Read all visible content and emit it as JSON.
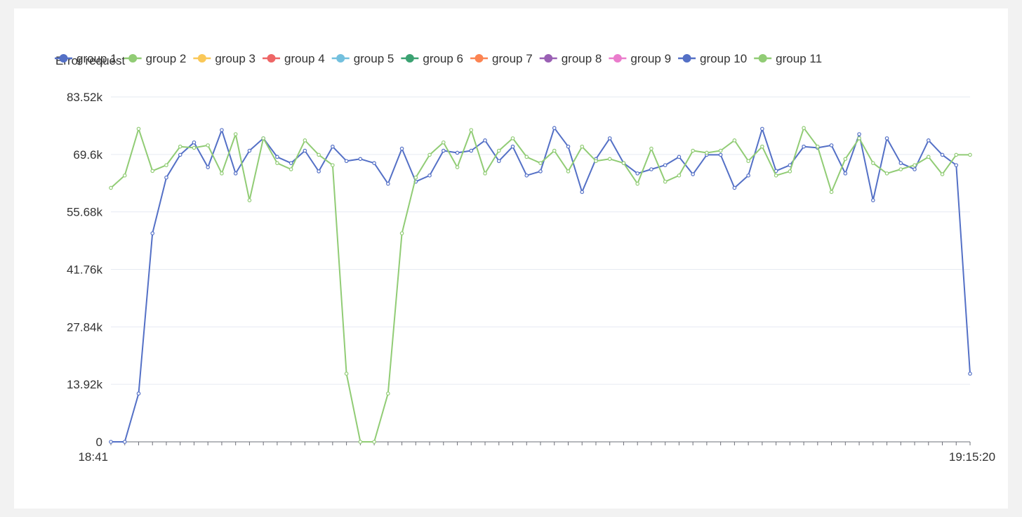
{
  "chart_data": {
    "type": "line",
    "title": "Error request",
    "x_start_label": "18:41",
    "x_end_label": "19:15:20",
    "y_ticks": [
      "0",
      "13.92k",
      "27.84k",
      "41.76k",
      "55.68k",
      "69.6k",
      "83.52k"
    ],
    "ylim": [
      0,
      83520
    ],
    "grid": true,
    "legend_position": "top-left",
    "legend": [
      {
        "name": "group 1",
        "color": "#5470c6"
      },
      {
        "name": "group 2",
        "color": "#91cc75"
      },
      {
        "name": "group 3",
        "color": "#fac858"
      },
      {
        "name": "group 4",
        "color": "#ee6666"
      },
      {
        "name": "group 5",
        "color": "#73c0de"
      },
      {
        "name": "group 6",
        "color": "#3ba272"
      },
      {
        "name": "group 7",
        "color": "#fc8452"
      },
      {
        "name": "group 8",
        "color": "#9a60b4"
      },
      {
        "name": "group 9",
        "color": "#ea7ccc"
      },
      {
        "name": "group 10",
        "color": "#5470c6"
      },
      {
        "name": "group 11",
        "color": "#91cc75"
      }
    ],
    "series": [
      {
        "name": "group 10",
        "color": "#5470c6",
        "values": [
          0,
          0,
          11700,
          50500,
          64000,
          69500,
          72500,
          66500,
          75500,
          65000,
          70500,
          73500,
          69000,
          67500,
          70500,
          65500,
          71500,
          68000,
          68500,
          67500,
          62500,
          71000,
          63000,
          64500,
          70500,
          70000,
          70500,
          73000,
          68000,
          71500,
          64500,
          65500,
          76000,
          71500,
          60500,
          68500,
          73500,
          67500,
          65000,
          66000,
          67000,
          69000,
          64800,
          69500,
          69500,
          61500,
          64500,
          75800,
          65600,
          67000,
          71500,
          71200,
          71800,
          65000,
          74500,
          58500,
          73500,
          67500,
          66000,
          73000,
          69500,
          67000,
          16500
        ]
      },
      {
        "name": "group 11",
        "color": "#91cc75",
        "values": [
          61500,
          64500,
          75800,
          65600,
          67000,
          71500,
          71200,
          71800,
          65000,
          74500,
          58500,
          73500,
          67500,
          66000,
          73000,
          69500,
          67000,
          16500,
          0,
          0,
          11700,
          50500,
          64000,
          69500,
          72500,
          66500,
          75500,
          65000,
          70500,
          73500,
          69000,
          67500,
          70500,
          65500,
          71500,
          68000,
          68500,
          67500,
          62500,
          71000,
          63000,
          64500,
          70500,
          70000,
          70500,
          73000,
          68000,
          71500,
          64500,
          65500,
          76000,
          71500,
          60500,
          68500,
          73500,
          67500,
          65000,
          66000,
          67000,
          69000,
          64800,
          69500,
          69500
        ]
      }
    ]
  }
}
